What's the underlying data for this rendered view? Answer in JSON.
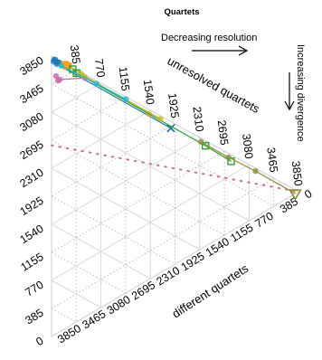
{
  "chart_data": {
    "type": "ternary-scatter",
    "title": "Quartets",
    "annotations": {
      "top": "Decreasing resolution",
      "right": "Increasing divergence"
    },
    "axes": {
      "left": {
        "label": "",
        "ticks": [
          "0",
          "385",
          "770",
          "1155",
          "1540",
          "1925",
          "2310",
          "2695",
          "3080",
          "3465",
          "3850"
        ]
      },
      "top": {
        "label": "unresolved quartets",
        "ticks": [
          "385",
          "770",
          "1155",
          "1540",
          "1925",
          "2310",
          "2695",
          "3080",
          "3465",
          "3850"
        ]
      },
      "right": {
        "label": "different quartets",
        "ticks": [
          "0",
          "385",
          "770",
          "1155",
          "1540",
          "1925",
          "2310",
          "2695",
          "3080",
          "3465",
          "3850"
        ]
      }
    },
    "total": 3850,
    "series": [
      {
        "color": "#1f77b4",
        "points": [
          {
            "unresolved": 40,
            "different": 30
          },
          {
            "unresolved": 60,
            "different": 20
          },
          {
            "unresolved": 90,
            "different": 40
          },
          {
            "unresolved": 30,
            "different": 60
          },
          {
            "unresolved": 120,
            "different": 30
          },
          {
            "unresolved": 80,
            "different": 70
          },
          {
            "unresolved": 1860,
            "different": 90
          }
        ]
      },
      {
        "color": "#ff9e1b",
        "points": [
          {
            "unresolved": 210,
            "different": 15
          },
          {
            "unresolved": 230,
            "different": 25
          },
          {
            "unresolved": 260,
            "different": 10
          },
          {
            "unresolved": 1520,
            "different": 60
          }
        ]
      },
      {
        "color": "#2ca02c",
        "points": [
          {
            "unresolved": 330,
            "different": 20
          },
          {
            "unresolved": 390,
            "different": 45
          },
          {
            "unresolved": 2400,
            "different": 70
          },
          {
            "unresolved": 2800,
            "different": 90
          }
        ]
      },
      {
        "color": "#cc66aa",
        "points": [
          {
            "unresolved": 70,
            "different": 240
          },
          {
            "unresolved": 100,
            "different": 290
          },
          {
            "unresolved": 130,
            "different": 260
          },
          {
            "unresolved": 520,
            "different": 50
          }
        ]
      },
      {
        "color": "#bcbd22",
        "points": [
          {
            "unresolved": 460,
            "different": 20
          },
          {
            "unresolved": 500,
            "different": 35
          },
          {
            "unresolved": 1700,
            "different": 40
          }
        ]
      },
      {
        "color": "#17becf",
        "points": [
          {
            "unresolved": 150,
            "different": 60
          },
          {
            "unresolved": 700,
            "different": 40
          },
          {
            "unresolved": 1160,
            "different": 30
          }
        ]
      },
      {
        "color": "#8c8c3a",
        "points": [
          {
            "unresolved": 2330,
            "different": 50
          },
          {
            "unresolved": 2760,
            "different": 55
          },
          {
            "unresolved": 3180,
            "different": 40
          },
          {
            "unresolved": 3800,
            "different": 50
          }
        ]
      }
    ],
    "reference_line": {
      "style": "dotted",
      "color": "#d46a8c",
      "from": {
        "unresolved": 0,
        "different": 1225
      },
      "to": {
        "unresolved": 3850,
        "different": 0
      }
    }
  }
}
